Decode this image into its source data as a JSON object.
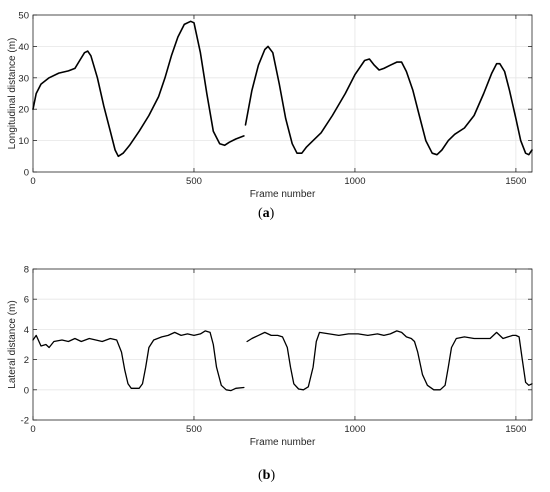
{
  "chart_data": [
    {
      "panel": "a",
      "panel_label": "(a)",
      "type": "line",
      "xlabel": "Frame number",
      "ylabel": "Longitudinal distance (m)",
      "xlim": [
        0,
        1550
      ],
      "ylim": [
        0,
        50
      ],
      "xticks": [
        0,
        500,
        1000,
        1500
      ],
      "yticks": [
        0,
        10,
        20,
        30,
        40,
        50
      ],
      "grid": true,
      "line_color": "#000000",
      "series": [
        {
          "segments": [
            [
              [
                0,
                20
              ],
              [
                10,
                25
              ],
              [
                25,
                28
              ],
              [
                50,
                30
              ],
              [
                80,
                31.5
              ],
              [
                110,
                32.2
              ],
              [
                130,
                33
              ],
              [
                145,
                35.5
              ],
              [
                160,
                38
              ],
              [
                170,
                38.5
              ],
              [
                180,
                37
              ],
              [
                200,
                30
              ],
              [
                220,
                21
              ],
              [
                240,
                13
              ],
              [
                255,
                7
              ],
              [
                265,
                5
              ],
              [
                280,
                6
              ],
              [
                300,
                8.5
              ],
              [
                330,
                13
              ],
              [
                360,
                18
              ],
              [
                390,
                24
              ],
              [
                410,
                30
              ],
              [
                430,
                37
              ],
              [
                450,
                43
              ],
              [
                470,
                47
              ],
              [
                490,
                48
              ],
              [
                500,
                47.5
              ],
              [
                520,
                38
              ],
              [
                540,
                25
              ],
              [
                560,
                13
              ],
              [
                580,
                9
              ],
              [
                595,
                8.5
              ],
              [
                610,
                9.5
              ],
              [
                630,
                10.5
              ],
              [
                655,
                11.5
              ]
            ],
            [
              [
                660,
                15
              ],
              [
                680,
                26
              ],
              [
                700,
                34
              ],
              [
                720,
                39
              ],
              [
                730,
                40
              ],
              [
                745,
                38
              ],
              [
                765,
                28
              ],
              [
                785,
                17
              ],
              [
                805,
                9
              ],
              [
                820,
                6
              ],
              [
                835,
                6
              ],
              [
                850,
                8
              ],
              [
                870,
                10
              ],
              [
                895,
                12.5
              ],
              [
                930,
                18
              ],
              [
                970,
                25
              ],
              [
                1000,
                31
              ],
              [
                1030,
                35.5
              ],
              [
                1045,
                36
              ],
              [
                1060,
                34
              ],
              [
                1075,
                32.5
              ],
              [
                1090,
                33
              ],
              [
                1110,
                34
              ],
              [
                1130,
                35
              ],
              [
                1145,
                35
              ],
              [
                1160,
                32
              ],
              [
                1180,
                26
              ],
              [
                1200,
                18
              ],
              [
                1220,
                10
              ],
              [
                1240,
                6
              ],
              [
                1255,
                5.5
              ],
              [
                1270,
                7
              ],
              [
                1290,
                10
              ],
              [
                1310,
                12
              ],
              [
                1340,
                14
              ],
              [
                1370,
                18
              ],
              [
                1400,
                25
              ],
              [
                1425,
                31.5
              ],
              [
                1440,
                34.5
              ],
              [
                1450,
                34.5
              ],
              [
                1465,
                32
              ],
              [
                1480,
                26
              ],
              [
                1500,
                17
              ],
              [
                1515,
                10
              ],
              [
                1530,
                6
              ],
              [
                1540,
                5.5
              ],
              [
                1550,
                7
              ]
            ]
          ]
        }
      ]
    },
    {
      "panel": "b",
      "panel_label": "(b)",
      "type": "line",
      "xlabel": "Frame number",
      "ylabel": "Lateral distance (m)",
      "xlim": [
        0,
        1550
      ],
      "ylim": [
        -2,
        8
      ],
      "xticks": [
        0,
        500,
        1000,
        1500
      ],
      "yticks": [
        -2,
        0,
        2,
        4,
        6,
        8
      ],
      "grid": true,
      "line_color": "#000000",
      "series": [
        {
          "segments": [
            [
              [
                0,
                3.3
              ],
              [
                10,
                3.6
              ],
              [
                25,
                2.9
              ],
              [
                40,
                3.0
              ],
              [
                50,
                2.8
              ],
              [
                65,
                3.2
              ],
              [
                90,
                3.3
              ],
              [
                110,
                3.2
              ],
              [
                130,
                3.4
              ],
              [
                150,
                3.2
              ],
              [
                175,
                3.4
              ],
              [
                195,
                3.3
              ],
              [
                215,
                3.2
              ],
              [
                240,
                3.4
              ],
              [
                260,
                3.3
              ],
              [
                275,
                2.5
              ],
              [
                285,
                1.3
              ],
              [
                295,
                0.4
              ],
              [
                305,
                0.1
              ],
              [
                330,
                0.1
              ],
              [
                340,
                0.4
              ],
              [
                350,
                1.5
              ],
              [
                360,
                2.8
              ],
              [
                375,
                3.3
              ],
              [
                400,
                3.5
              ],
              [
                420,
                3.6
              ],
              [
                440,
                3.8
              ],
              [
                460,
                3.6
              ],
              [
                480,
                3.7
              ],
              [
                500,
                3.6
              ],
              [
                520,
                3.7
              ],
              [
                535,
                3.9
              ],
              [
                550,
                3.8
              ],
              [
                560,
                3.0
              ],
              [
                570,
                1.5
              ],
              [
                585,
                0.3
              ],
              [
                600,
                0.0
              ],
              [
                615,
                -0.05
              ],
              [
                630,
                0.1
              ],
              [
                655,
                0.15
              ]
            ],
            [
              [
                665,
                3.2
              ],
              [
                680,
                3.4
              ],
              [
                700,
                3.6
              ],
              [
                720,
                3.8
              ],
              [
                740,
                3.6
              ],
              [
                760,
                3.6
              ],
              [
                775,
                3.5
              ],
              [
                790,
                2.8
              ],
              [
                800,
                1.5
              ],
              [
                810,
                0.4
              ],
              [
                825,
                0.05
              ],
              [
                840,
                0.0
              ],
              [
                855,
                0.2
              ],
              [
                870,
                1.5
              ],
              [
                880,
                3.2
              ],
              [
                890,
                3.8
              ],
              [
                920,
                3.7
              ],
              [
                950,
                3.6
              ],
              [
                980,
                3.7
              ],
              [
                1010,
                3.7
              ],
              [
                1040,
                3.6
              ],
              [
                1070,
                3.7
              ],
              [
                1090,
                3.6
              ],
              [
                1110,
                3.7
              ],
              [
                1130,
                3.9
              ],
              [
                1145,
                3.8
              ],
              [
                1160,
                3.5
              ],
              [
                1175,
                3.4
              ],
              [
                1185,
                3.2
              ],
              [
                1195,
                2.5
              ],
              [
                1210,
                1.0
              ],
              [
                1225,
                0.3
              ],
              [
                1245,
                0.0
              ],
              [
                1265,
                0.0
              ],
              [
                1280,
                0.3
              ],
              [
                1290,
                1.5
              ],
              [
                1300,
                2.8
              ],
              [
                1315,
                3.4
              ],
              [
                1340,
                3.5
              ],
              [
                1370,
                3.4
              ],
              [
                1400,
                3.4
              ],
              [
                1420,
                3.4
              ],
              [
                1440,
                3.8
              ],
              [
                1460,
                3.4
              ],
              [
                1475,
                3.5
              ],
              [
                1490,
                3.6
              ],
              [
                1500,
                3.6
              ],
              [
                1510,
                3.5
              ],
              [
                1520,
                2.0
              ],
              [
                1530,
                0.5
              ],
              [
                1540,
                0.3
              ],
              [
                1550,
                0.4
              ]
            ]
          ]
        }
      ]
    }
  ]
}
